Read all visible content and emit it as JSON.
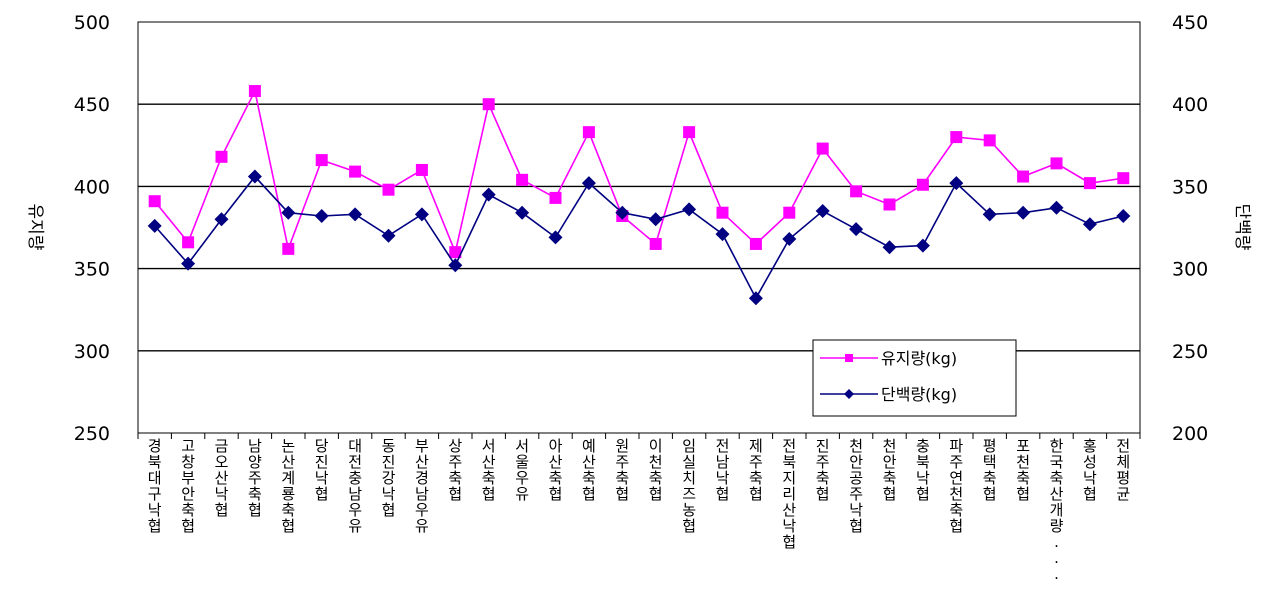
{
  "chart_data": {
    "type": "line",
    "title": "",
    "ylabel_left": "유지량",
    "ylabel_right": "단백량",
    "ylim_left": [
      250,
      500
    ],
    "ylim_right": [
      200,
      450
    ],
    "yticks_left": [
      "500",
      "450",
      "400",
      "350",
      "300",
      "250"
    ],
    "yticks_right": [
      "450",
      "400",
      "350",
      "300",
      "250",
      "200"
    ],
    "grid": true,
    "legend_position": "lower-right",
    "categories": [
      "경북대구낙협",
      "고창부안축협",
      "금오산낙협",
      "남양주축협",
      "논산계룡축협",
      "당진낙협",
      "대전충남우유",
      "동진강낙협",
      "부산경남우유",
      "상주축협",
      "서산축협",
      "서울우유",
      "아산축협",
      "예산축협",
      "원주축협",
      "이천축협",
      "임실치즈농협",
      "전남낙협",
      "제주축협",
      "전북지리산낙협",
      "진주축협",
      "천안공주낙협",
      "천안축협",
      "충북낙협",
      "파주연천축협",
      "평택축협",
      "포천축협",
      "한국축산개량...",
      "홍성낙협",
      "전체평균"
    ],
    "series": [
      {
        "name": "유지량(kg)",
        "axis": "left",
        "color": "#ff00ff",
        "marker": "square",
        "values": [
          391,
          366,
          418,
          458,
          362,
          416,
          409,
          398,
          410,
          360,
          450,
          404,
          393,
          433,
          382,
          365,
          433,
          384,
          365,
          384,
          423,
          397,
          389,
          401,
          430,
          428,
          406,
          414,
          402,
          405
        ]
      },
      {
        "name": "단백량(kg)",
        "axis": "right",
        "color": "#000080",
        "marker": "diamond",
        "values": [
          326,
          303,
          330,
          356,
          334,
          332,
          333,
          320,
          333,
          302,
          345,
          334,
          319,
          352,
          334,
          330,
          336,
          321,
          282,
          318,
          335,
          324,
          313,
          314,
          352,
          333,
          334,
          337,
          327,
          332
        ]
      }
    ]
  }
}
